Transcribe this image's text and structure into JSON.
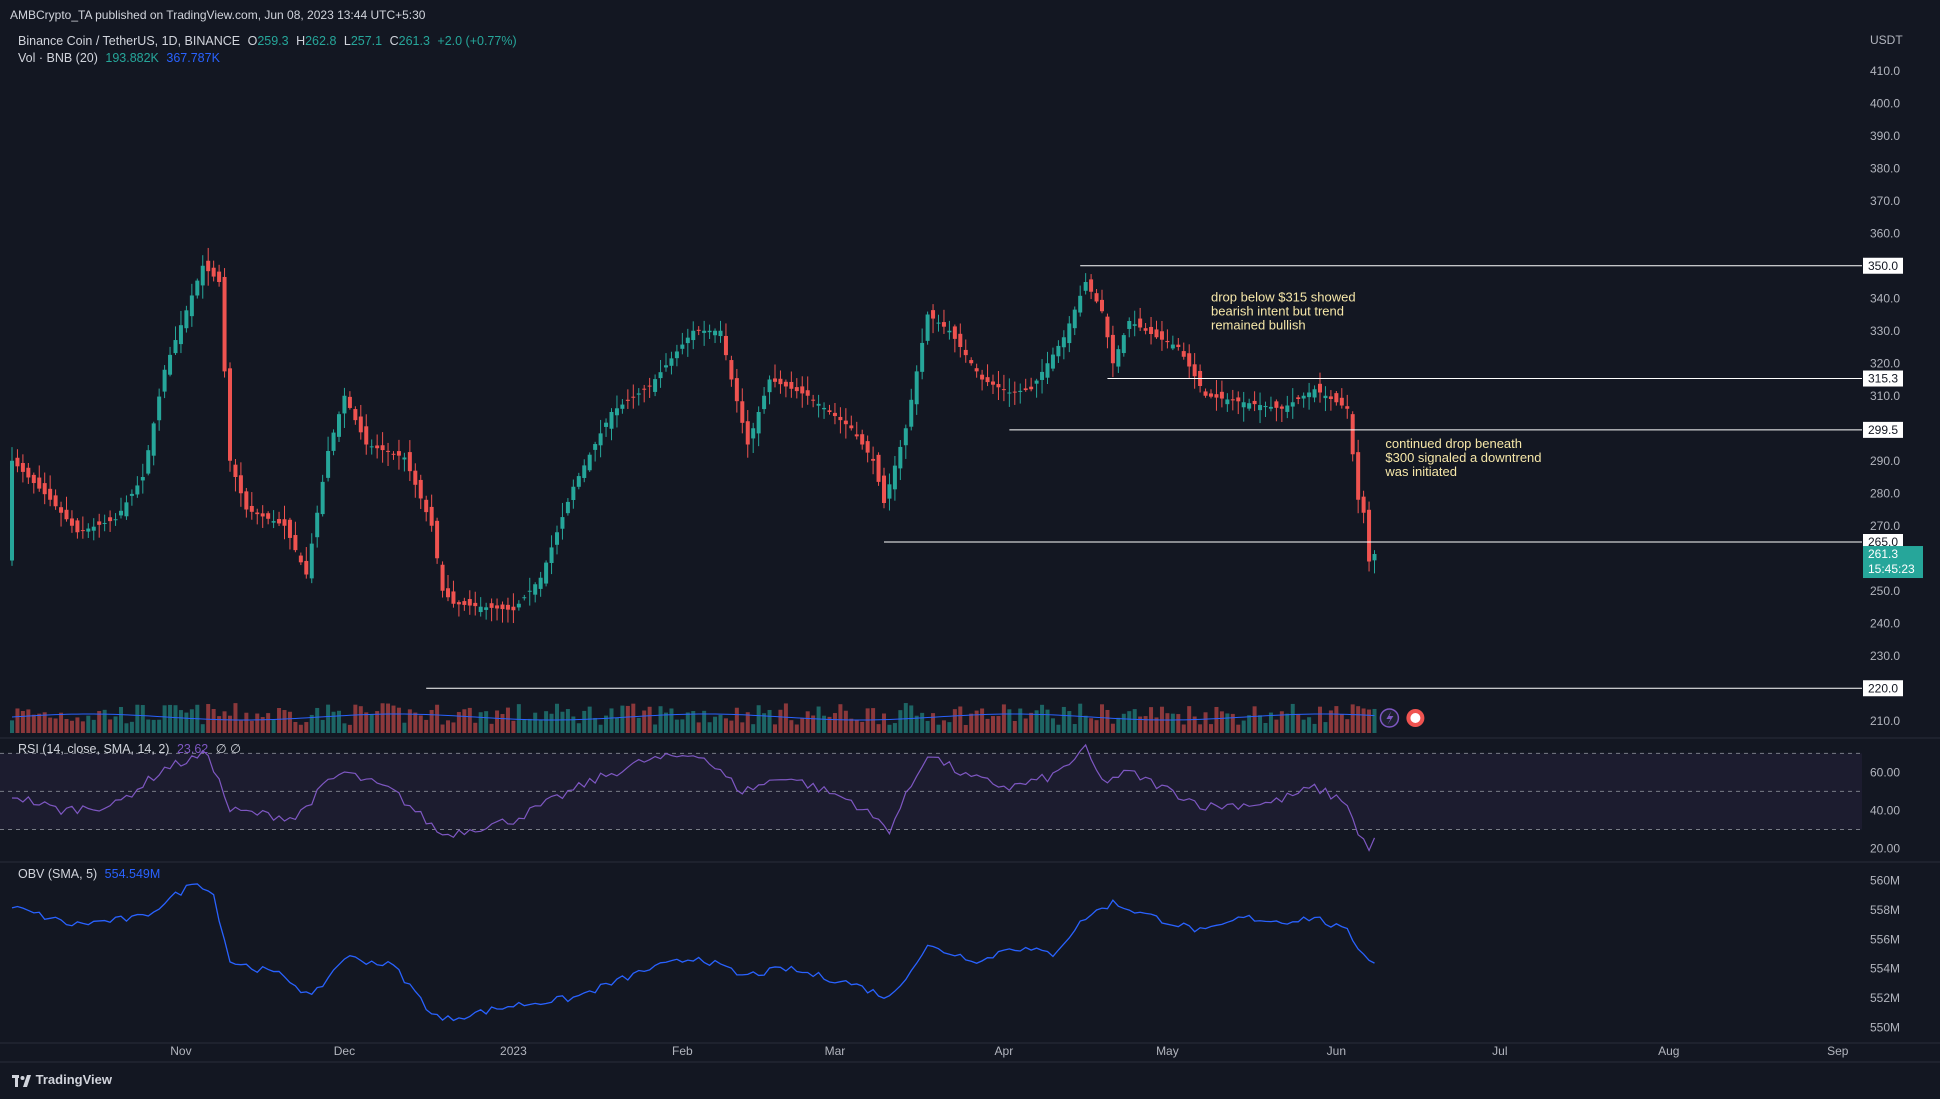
{
  "publisher": "AMBCrypto_TA published on TradingView.com, Jun 08, 2023 13:44 UTC+5:30",
  "symbol": {
    "name": "Binance Coin / TetherUS, 1D, BINANCE",
    "open_label": "O",
    "open": "259.3",
    "high_label": "H",
    "high": "262.8",
    "low_label": "L",
    "low": "257.1",
    "close_label": "C",
    "close": "261.3",
    "change": "+2.0 (+0.77%)"
  },
  "volume_legend": {
    "label": "Vol · BNB (20)",
    "value1": "193.882K",
    "value2": "367.787K"
  },
  "rsi_legend": {
    "label": "RSI (14, close, SMA, 14, 2)",
    "value": "23.62",
    "extra": "∅  ∅"
  },
  "obv_legend": {
    "label": "OBV (SMA, 5)",
    "value": "554.549M"
  },
  "footer_brand": "TradingView",
  "colors": {
    "bg": "#131722",
    "up": "#26a69a",
    "down": "#ef5350",
    "rsi": "#7e57c2",
    "obv": "#2962ff",
    "annotation": "#f5e6a8",
    "level": "#ffffff"
  },
  "chart_data": {
    "type": "candlestick",
    "currency": "USDT",
    "x_ticks": [
      "Nov",
      "Dec",
      "2023",
      "Feb",
      "Mar",
      "Apr",
      "May",
      "Jun",
      "Jul",
      "Aug",
      "Sep"
    ],
    "y_ticks": [
      210.0,
      220.0,
      230.0,
      240.0,
      250.0,
      260.0,
      270.0,
      280.0,
      290.0,
      300.0,
      310.0,
      320.0,
      330.0,
      340.0,
      350.0,
      360.0,
      370.0,
      380.0,
      390.0,
      400.0,
      410.0
    ],
    "ylim": [
      205,
      412
    ],
    "price_anchors": [
      {
        "d": "2022-10-01",
        "p": 290
      },
      {
        "d": "2022-10-08",
        "p": 278
      },
      {
        "d": "2022-10-13",
        "p": 268
      },
      {
        "d": "2022-10-20",
        "p": 272
      },
      {
        "d": "2022-10-25",
        "p": 285
      },
      {
        "d": "2022-10-29",
        "p": 318
      },
      {
        "d": "2022-11-05",
        "p": 350
      },
      {
        "d": "2022-11-08",
        "p": 345
      },
      {
        "d": "2022-11-10",
        "p": 290
      },
      {
        "d": "2022-11-13",
        "p": 275
      },
      {
        "d": "2022-11-20",
        "p": 270
      },
      {
        "d": "2022-11-24",
        "p": 255
      },
      {
        "d": "2022-11-28",
        "p": 293
      },
      {
        "d": "2022-12-01",
        "p": 310
      },
      {
        "d": "2022-12-05",
        "p": 295
      },
      {
        "d": "2022-12-12",
        "p": 291
      },
      {
        "d": "2022-12-17",
        "p": 270
      },
      {
        "d": "2022-12-19",
        "p": 250
      },
      {
        "d": "2022-12-21",
        "p": 246
      },
      {
        "d": "2023-01-01",
        "p": 244
      },
      {
        "d": "2023-01-06",
        "p": 254
      },
      {
        "d": "2023-01-12",
        "p": 282
      },
      {
        "d": "2023-01-19",
        "p": 305
      },
      {
        "d": "2023-01-26",
        "p": 313
      },
      {
        "d": "2023-02-03",
        "p": 330
      },
      {
        "d": "2023-02-08",
        "p": 330
      },
      {
        "d": "2023-02-10",
        "p": 315
      },
      {
        "d": "2023-02-13",
        "p": 295
      },
      {
        "d": "2023-02-17",
        "p": 315
      },
      {
        "d": "2023-02-24",
        "p": 310
      },
      {
        "d": "2023-03-04",
        "p": 300
      },
      {
        "d": "2023-03-08",
        "p": 290
      },
      {
        "d": "2023-03-10",
        "p": 277
      },
      {
        "d": "2023-03-14",
        "p": 300
      },
      {
        "d": "2023-03-18",
        "p": 335
      },
      {
        "d": "2023-03-22",
        "p": 330
      },
      {
        "d": "2023-03-28",
        "p": 315
      },
      {
        "d": "2023-04-02",
        "p": 311
      },
      {
        "d": "2023-04-06",
        "p": 312
      },
      {
        "d": "2023-04-12",
        "p": 328
      },
      {
        "d": "2023-04-16",
        "p": 345
      },
      {
        "d": "2023-04-19",
        "p": 336
      },
      {
        "d": "2023-04-21",
        "p": 320
      },
      {
        "d": "2023-04-24",
        "p": 333
      },
      {
        "d": "2023-04-29",
        "p": 328
      },
      {
        "d": "2023-05-03",
        "p": 325
      },
      {
        "d": "2023-05-08",
        "p": 310
      },
      {
        "d": "2023-05-15",
        "p": 308
      },
      {
        "d": "2023-05-22",
        "p": 306
      },
      {
        "d": "2023-05-28",
        "p": 312
      },
      {
        "d": "2023-06-03",
        "p": 306
      },
      {
        "d": "2023-06-05",
        "p": 278
      },
      {
        "d": "2023-06-06",
        "p": 274
      },
      {
        "d": "2023-06-07",
        "p": 259
      },
      {
        "d": "2023-06-08",
        "p": 261.3
      }
    ],
    "last_price": {
      "value": "261.3",
      "countdown": "15:45:23"
    },
    "levels": [
      {
        "value": 350.0,
        "label": "350.0",
        "from": "2023-04-15"
      },
      {
        "value": 315.3,
        "label": "315.3",
        "from": "2023-04-20"
      },
      {
        "value": 299.5,
        "label": "299.5",
        "from": "2023-04-02"
      },
      {
        "value": 265.0,
        "label": "265.0",
        "from": "2023-03-10"
      },
      {
        "value": 220.0,
        "label": "220.0",
        "from": "2022-12-16"
      }
    ],
    "annotations": [
      {
        "lines": [
          "drop below $315 showed",
          "bearish intent but trend",
          "remained bullish"
        ],
        "date": "2023-05-09",
        "price": 339
      },
      {
        "lines": [
          "continued drop beneath",
          "$300 signaled a downtrend",
          "was initiated"
        ],
        "date": "2023-06-10",
        "price": 294
      }
    ],
    "rsi": {
      "y_ticks": [
        20.0,
        40.0,
        60.0
      ],
      "ylim": [
        15,
        77
      ],
      "bands": [
        70,
        50,
        30
      ],
      "anchors": [
        {
          "d": "2022-10-01",
          "v": 48
        },
        {
          "d": "2022-10-10",
          "v": 40
        },
        {
          "d": "2022-10-20",
          "v": 43
        },
        {
          "d": "2022-10-29",
          "v": 62
        },
        {
          "d": "2022-11-06",
          "v": 70
        },
        {
          "d": "2022-11-10",
          "v": 40
        },
        {
          "d": "2022-11-22",
          "v": 36
        },
        {
          "d": "2022-11-28",
          "v": 55
        },
        {
          "d": "2022-12-01",
          "v": 60
        },
        {
          "d": "2022-12-10",
          "v": 50
        },
        {
          "d": "2022-12-19",
          "v": 27
        },
        {
          "d": "2023-01-01",
          "v": 35
        },
        {
          "d": "2023-01-15",
          "v": 55
        },
        {
          "d": "2023-01-25",
          "v": 66
        },
        {
          "d": "2023-02-04",
          "v": 70
        },
        {
          "d": "2023-02-12",
          "v": 50
        },
        {
          "d": "2023-02-20",
          "v": 58
        },
        {
          "d": "2023-03-04",
          "v": 45
        },
        {
          "d": "2023-03-11",
          "v": 30
        },
        {
          "d": "2023-03-18",
          "v": 70
        },
        {
          "d": "2023-03-25",
          "v": 58
        },
        {
          "d": "2023-04-02",
          "v": 52
        },
        {
          "d": "2023-04-10",
          "v": 58
        },
        {
          "d": "2023-04-16",
          "v": 72
        },
        {
          "d": "2023-04-19",
          "v": 55
        },
        {
          "d": "2023-04-24",
          "v": 60
        },
        {
          "d": "2023-05-08",
          "v": 42
        },
        {
          "d": "2023-05-20",
          "v": 44
        },
        {
          "d": "2023-05-28",
          "v": 52
        },
        {
          "d": "2023-06-03",
          "v": 44
        },
        {
          "d": "2023-06-05",
          "v": 27
        },
        {
          "d": "2023-06-07",
          "v": 21
        },
        {
          "d": "2023-06-08",
          "v": 23.62
        }
      ]
    },
    "obv": {
      "y_ticks": [
        "550M",
        "552M",
        "554M",
        "556M",
        "558M",
        "560M"
      ],
      "ylim": [
        549,
        561
      ],
      "anchors": [
        {
          "d": "2022-10-01",
          "v": 558.2
        },
        {
          "d": "2022-10-12",
          "v": 557.0
        },
        {
          "d": "2022-10-25",
          "v": 557.5
        },
        {
          "d": "2022-11-04",
          "v": 560.0
        },
        {
          "d": "2022-11-07",
          "v": 559.0
        },
        {
          "d": "2022-11-10",
          "v": 554.5
        },
        {
          "d": "2022-11-20",
          "v": 553.5
        },
        {
          "d": "2022-11-25",
          "v": 552.0
        },
        {
          "d": "2022-12-01",
          "v": 554.8
        },
        {
          "d": "2022-12-10",
          "v": 554.2
        },
        {
          "d": "2022-12-17",
          "v": 551.0
        },
        {
          "d": "2022-12-19",
          "v": 550.5
        },
        {
          "d": "2023-01-01",
          "v": 551.5
        },
        {
          "d": "2023-01-12",
          "v": 552.0
        },
        {
          "d": "2023-01-26",
          "v": 554.0
        },
        {
          "d": "2023-02-04",
          "v": 554.8
        },
        {
          "d": "2023-02-12",
          "v": 553.5
        },
        {
          "d": "2023-02-20",
          "v": 554.0
        },
        {
          "d": "2023-03-04",
          "v": 553.0
        },
        {
          "d": "2023-03-11",
          "v": 552.0
        },
        {
          "d": "2023-03-18",
          "v": 555.5
        },
        {
          "d": "2023-03-28",
          "v": 554.5
        },
        {
          "d": "2023-04-02",
          "v": 555.5
        },
        {
          "d": "2023-04-10",
          "v": 555.0
        },
        {
          "d": "2023-04-16",
          "v": 557.5
        },
        {
          "d": "2023-04-21",
          "v": 558.5
        },
        {
          "d": "2023-04-26",
          "v": 557.8
        },
        {
          "d": "2023-05-03",
          "v": 557.0
        },
        {
          "d": "2023-05-08",
          "v": 556.5
        },
        {
          "d": "2023-05-15",
          "v": 557.5
        },
        {
          "d": "2023-05-22",
          "v": 557.2
        },
        {
          "d": "2023-05-28",
          "v": 557.5
        },
        {
          "d": "2023-06-03",
          "v": 556.5
        },
        {
          "d": "2023-06-06",
          "v": 555.0
        },
        {
          "d": "2023-06-08",
          "v": 554.5
        }
      ]
    }
  }
}
